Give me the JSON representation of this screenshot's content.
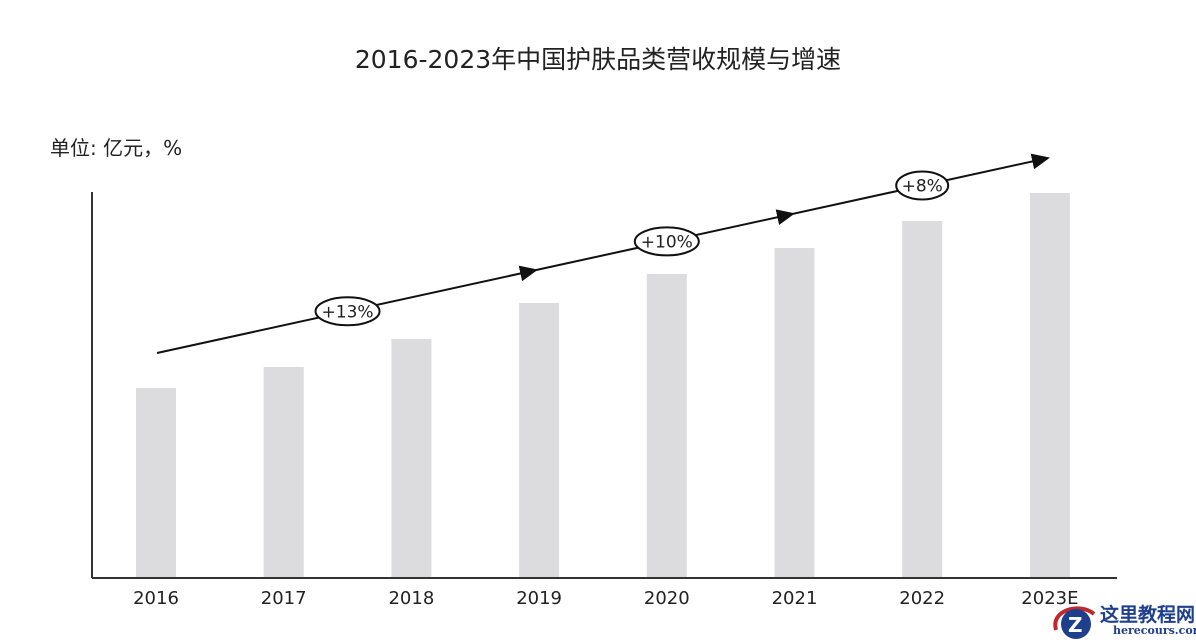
{
  "chart_data": {
    "type": "bar",
    "title": "2016-2023年中国护肤品类营收规模与增速",
    "unit_label": "单位: 亿元，%",
    "xlabel": "",
    "ylabel": "",
    "categories": [
      "2016",
      "2017",
      "2018",
      "2019",
      "2020",
      "2021",
      "2022",
      "2023E"
    ],
    "values": [
      190,
      211,
      239,
      275,
      304,
      330,
      357,
      385
    ],
    "values_note_relative": true,
    "ylim": [
      0,
      386
    ],
    "grid": false,
    "bar_color": "#dcdcde",
    "trend_arrow": true,
    "annotations": [
      {
        "label": "+13%",
        "at": 1.5
      },
      {
        "label": "+10%",
        "at": 4
      },
      {
        "label": "+8%",
        "at": 6
      }
    ]
  },
  "watermark": {
    "name": "这里教程网",
    "url": "herecours.com"
  }
}
